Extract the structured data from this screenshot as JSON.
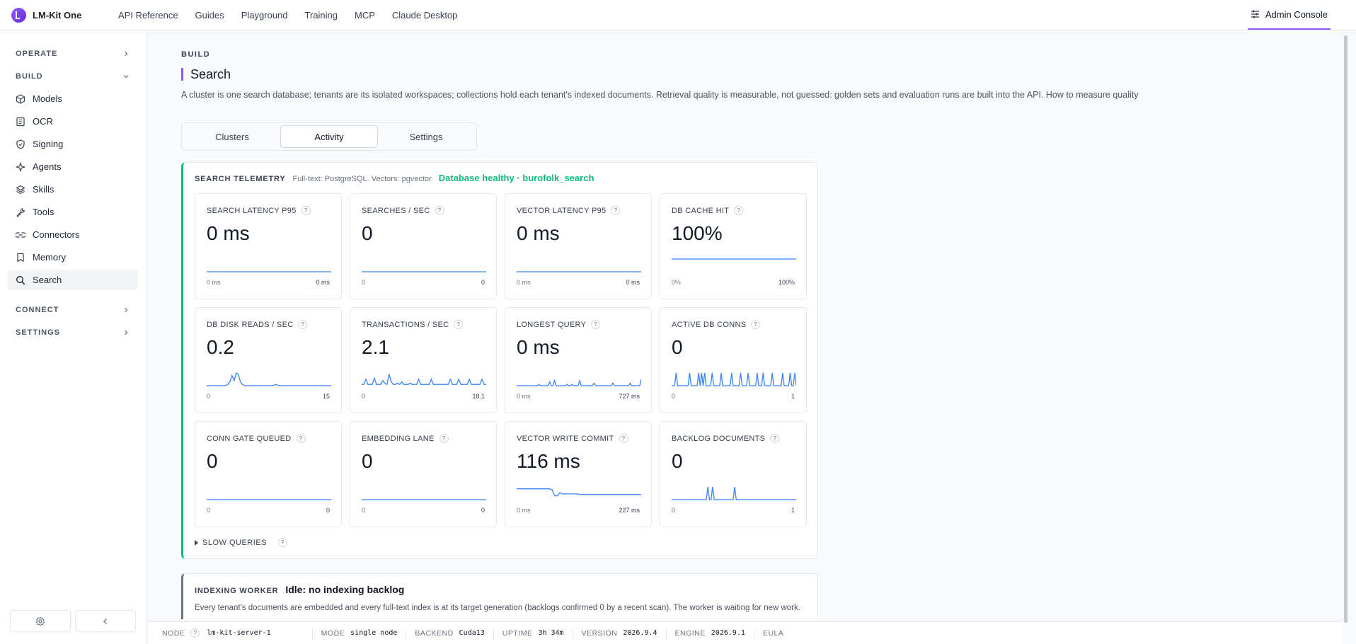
{
  "brand": {
    "name": "LM-Kit One"
  },
  "topnav": [
    "API Reference",
    "Guides",
    "Playground",
    "Training",
    "MCP",
    "Claude Desktop"
  ],
  "admin": {
    "label": "Admin Console"
  },
  "sidebar": {
    "sections": {
      "operate": "OPERATE",
      "build": "BUILD",
      "connect": "CONNECT",
      "settings": "SETTINGS"
    },
    "items": [
      {
        "label": "Models",
        "icon": "cube-icon"
      },
      {
        "label": "OCR",
        "icon": "document-icon"
      },
      {
        "label": "Signing",
        "icon": "shield-icon"
      },
      {
        "label": "Agents",
        "icon": "sparkle-icon"
      },
      {
        "label": "Skills",
        "icon": "layers-icon"
      },
      {
        "label": "Tools",
        "icon": "wrench-icon"
      },
      {
        "label": "Connectors",
        "icon": "link-icon"
      },
      {
        "label": "Memory",
        "icon": "bookmark-icon"
      },
      {
        "label": "Search",
        "icon": "search-icon"
      }
    ]
  },
  "page": {
    "eyebrow": "BUILD",
    "title": "Search",
    "description": "A cluster is one search database; tenants are its isolated workspaces; collections hold each tenant's indexed documents. Retrieval quality is measurable, not guessed: golden sets and evaluation runs are built into the API. How to measure quality"
  },
  "tabs": [
    "Clusters",
    "Activity",
    "Settings"
  ],
  "active_tab": "Activity",
  "telemetry": {
    "title": "SEARCH TELEMETRY",
    "sub": "Full-text: PostgreSQL. Vectors: pgvector",
    "status": "Database healthy · burofolk_search",
    "help": "?",
    "cards": [
      {
        "label": "SEARCH LATENCY P95",
        "value": "0 ms",
        "min": "0 ms",
        "max": "0 ms",
        "spark": [
          0,
          0,
          0,
          0,
          0,
          0,
          0,
          0,
          0,
          0,
          0,
          0,
          0,
          0,
          0,
          0,
          0,
          0,
          0,
          0
        ]
      },
      {
        "label": "SEARCHES / SEC",
        "value": "0",
        "min": "0",
        "max": "0",
        "spark": [
          0,
          0,
          0,
          0,
          0,
          0,
          0,
          0,
          0,
          0,
          0,
          0,
          0,
          0,
          0,
          0,
          0,
          0,
          0,
          0
        ]
      },
      {
        "label": "VECTOR LATENCY P95",
        "value": "0 ms",
        "min": "0 ms",
        "max": "0 ms",
        "spark": [
          0,
          0,
          0,
          0,
          0,
          0,
          0,
          0,
          0,
          0,
          0,
          0,
          0,
          0,
          0,
          0,
          0,
          0,
          0,
          0
        ]
      },
      {
        "label": "DB CACHE HIT",
        "value": "100%",
        "min": "0%",
        "max": "100%",
        "spark": [
          1,
          1,
          1,
          1,
          1,
          1,
          1,
          1,
          1,
          1,
          1,
          1,
          1,
          1,
          1,
          1,
          1,
          1,
          1,
          1
        ]
      },
      {
        "label": "DB DISK READS / SEC",
        "value": "0.2",
        "min": "0",
        "max": "15",
        "spark": [
          0,
          0,
          0,
          0,
          0,
          0,
          0,
          0,
          0,
          0,
          0.1,
          0.3,
          0.8,
          0.4,
          1.0,
          0.9,
          0.3,
          0.1,
          0,
          0,
          0,
          0,
          0,
          0,
          0,
          0,
          0,
          0,
          0,
          0,
          0,
          0,
          0.05,
          0.1,
          0,
          0,
          0,
          0,
          0,
          0,
          0,
          0,
          0,
          0,
          0,
          0,
          0,
          0,
          0,
          0,
          0,
          0,
          0,
          0,
          0,
          0,
          0,
          0,
          0,
          0
        ]
      },
      {
        "label": "TRANSACTIONS / SEC",
        "value": "2.1",
        "min": "0",
        "max": "18.1",
        "spark": [
          0.1,
          0.1,
          0.5,
          0.1,
          0.1,
          0.1,
          0.6,
          0.1,
          0.1,
          0.1,
          0.4,
          0.2,
          0.1,
          0.9,
          0.3,
          0.1,
          0.1,
          0.2,
          0.1,
          0.3,
          0.1,
          0.1,
          0.1,
          0.2,
          0.1,
          0.1,
          0.1,
          0.5,
          0.1,
          0.1,
          0.1,
          0.1,
          0.1,
          0.5,
          0.1,
          0.1,
          0.1,
          0.1,
          0.1,
          0.1,
          0.1,
          0.1,
          0.5,
          0.1,
          0.1,
          0.1,
          0.5,
          0.1,
          0.1,
          0.1,
          0.1,
          0.5,
          0.1,
          0.1,
          0.1,
          0.1,
          0.1,
          0.5,
          0.1,
          0.1
        ]
      },
      {
        "label": "LONGEST QUERY",
        "value": "0 ms",
        "min": "0 ms",
        "max": "727 ms",
        "spark": [
          0,
          0,
          0,
          0,
          0,
          0,
          0,
          0,
          0,
          0,
          0,
          0,
          0,
          0,
          0.1,
          0,
          0,
          0,
          0,
          0,
          0,
          0.3,
          0,
          0,
          0.4,
          0,
          0,
          0,
          0,
          0,
          0,
          0,
          0.1,
          0,
          0,
          0.1,
          0,
          0,
          0,
          0,
          0.4,
          0,
          0,
          0,
          0,
          0,
          0,
          0,
          0,
          0.2,
          0,
          0,
          0,
          0,
          0,
          0,
          0,
          0,
          0,
          0,
          0,
          0.2,
          0,
          0,
          0,
          0,
          0,
          0,
          0,
          0,
          0,
          0,
          0.2,
          0,
          0,
          0,
          0,
          0,
          0,
          0.5
        ]
      },
      {
        "label": "ACTIVE DB CONNS",
        "value": "0",
        "min": "0",
        "max": "1",
        "spark": [
          0,
          0,
          0,
          1,
          0,
          0,
          0,
          0,
          0,
          0,
          0,
          0,
          1,
          0,
          0,
          0,
          0,
          0,
          1,
          0,
          1,
          0,
          1,
          0,
          0,
          0,
          0,
          1,
          0,
          0,
          0,
          0,
          0,
          1,
          0,
          0,
          0,
          0,
          0,
          0,
          1,
          0,
          0,
          0,
          0,
          0,
          1,
          0,
          0,
          0,
          0,
          1,
          0,
          0,
          0,
          0,
          0,
          1,
          0,
          0,
          0,
          1,
          0,
          0,
          0,
          0,
          0,
          1,
          0,
          0,
          0,
          0,
          0,
          0,
          1,
          0,
          0,
          0,
          0,
          1,
          0,
          0,
          1,
          0
        ]
      },
      {
        "label": "CONN GATE QUEUED",
        "value": "0",
        "min": "0",
        "max": "0",
        "spark": [
          0,
          0,
          0,
          0,
          0,
          0,
          0,
          0,
          0,
          0,
          0,
          0,
          0,
          0,
          0,
          0,
          0,
          0,
          0,
          0
        ]
      },
      {
        "label": "EMBEDDING LANE",
        "value": "0",
        "min": "0",
        "max": "0",
        "spark": [
          0,
          0,
          0,
          0,
          0,
          0,
          0,
          0,
          0,
          0,
          0,
          0,
          0,
          0,
          0,
          0,
          0,
          0,
          0,
          0
        ]
      },
      {
        "label": "VECTOR WRITE COMMIT",
        "value": "116 ms",
        "min": "0 ms",
        "max": "227 ms",
        "spark": [
          0.85,
          0.85,
          0.85,
          0.85,
          0.85,
          0.85,
          0.85,
          0.85,
          0.85,
          0.85,
          0.85,
          0.85,
          0.85,
          0.85,
          0.75,
          0.3,
          0.3,
          0.55,
          0.45,
          0.45,
          0.45,
          0.45,
          0.45,
          0.45,
          0.45,
          0.4,
          0.4,
          0.4,
          0.4,
          0.4,
          0.4,
          0.4,
          0.4,
          0.4,
          0.4,
          0.4,
          0.4,
          0.4,
          0.4,
          0.4,
          0.4,
          0.4,
          0.4,
          0.4,
          0.4,
          0.4,
          0.4,
          0.4,
          0.4,
          0.4
        ]
      },
      {
        "label": "BACKLOG DOCUMENTS",
        "value": "0",
        "min": "0",
        "max": "1",
        "spark": [
          0,
          0,
          0,
          0,
          0,
          0,
          0,
          0,
          0,
          0,
          0,
          0,
          0,
          0,
          0,
          0,
          0,
          0,
          0,
          0,
          0,
          0,
          0,
          1,
          0,
          0,
          1,
          0,
          0,
          0,
          0,
          0,
          0,
          0,
          0,
          0,
          0,
          0,
          0,
          0,
          1,
          0,
          0,
          0,
          0,
          0,
          0,
          0,
          0,
          0,
          0,
          0,
          0,
          0,
          0,
          0,
          0,
          0,
          0,
          0,
          0,
          0,
          0,
          0,
          0,
          0,
          0,
          0,
          0,
          0,
          0,
          0,
          0,
          0,
          0,
          0,
          0,
          0,
          0,
          0
        ]
      }
    ],
    "slow_queries": "SLOW QUERIES"
  },
  "indexing": {
    "title": "INDEXING WORKER",
    "status": "Idle: no indexing backlog",
    "description": "Every tenant's documents are embedded and every full-text index is at its target generation (backlogs confirmed 0 by a recent scan). The worker is waiting for new work."
  },
  "statusbar": {
    "node_label": "NODE",
    "node_value": "lm-kit-server-1",
    "mode_label": "MODE",
    "mode_value": "single node",
    "backend_label": "BACKEND",
    "backend_value": "Cuda13",
    "uptime_label": "UPTIME",
    "uptime_value": "3h 34m",
    "version_label": "VERSION",
    "version_value": "2026.9.4",
    "engine_label": "ENGINE",
    "engine_value": "2026.9.1",
    "eula": "EULA"
  },
  "colors": {
    "accent": "#8b5cf6",
    "healthy": "#10b981",
    "spark": "#3b82f6"
  }
}
